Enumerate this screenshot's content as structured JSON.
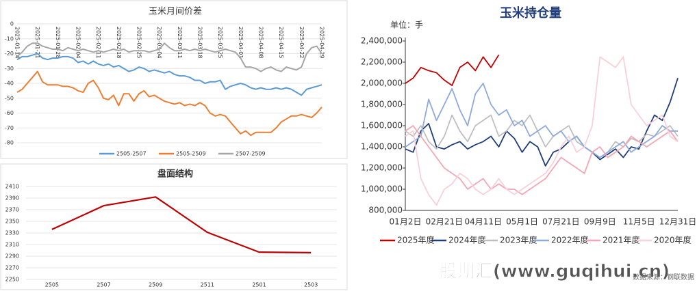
{
  "chart_data": [
    {
      "type": "line",
      "title": "玉米月间价差",
      "categories": [
        "2025-01-14",
        null,
        null,
        null,
        "2025-01-21",
        null,
        null,
        null,
        "2025-01-28",
        null,
        null,
        null,
        "2025-02-04",
        null,
        null,
        null,
        "2025-02-11",
        null,
        null,
        null,
        "2025-02-18",
        null,
        null,
        null,
        "2025-02-25",
        null,
        null,
        null,
        "2025-03-04",
        null,
        null,
        null,
        "2025-03-11",
        null,
        null,
        null,
        "2025-03-18",
        null,
        null,
        null,
        "2025-03-25",
        null,
        null,
        null,
        "2025-04-01",
        null,
        null,
        null,
        "2025-04-08",
        null,
        null,
        null,
        "2025-04-15",
        null,
        null,
        null,
        "2025-04-22",
        null,
        null,
        null,
        "2025-04-29"
      ],
      "series": [
        {
          "name": "2505-2507",
          "color": "#5b9bd5",
          "values": [
            -24,
            -22,
            -22,
            -21,
            -20,
            -23,
            -24,
            -23,
            -23,
            -22,
            -22,
            -23,
            -26,
            -25,
            -27,
            -25,
            -27,
            -28,
            -27,
            -29,
            -28,
            -30,
            -32,
            -31,
            -29,
            -30,
            -32,
            -31,
            -32,
            -33,
            -32,
            -34,
            -35,
            -35,
            -36,
            -38,
            -38,
            -40,
            -39,
            -39,
            -38,
            -44,
            -42,
            -41,
            -40,
            -41,
            -43,
            -44,
            -43,
            -44,
            -44,
            -43,
            -44,
            -43,
            -44,
            -46,
            -48,
            -44,
            -43,
            -42,
            -41
          ]
        },
        {
          "name": "2505-2509",
          "color": "#ed7d31",
          "values": [
            -46,
            -44,
            -40,
            -36,
            -32,
            -39,
            -41,
            -41,
            -41,
            -42,
            -42,
            -43,
            -45,
            -46,
            -40,
            -38,
            -43,
            -50,
            -51,
            -48,
            -55,
            -47,
            -47,
            -52,
            -47,
            -45,
            -49,
            -48,
            -50,
            -52,
            -53,
            -54,
            -53,
            -55,
            -54,
            -55,
            -53,
            -55,
            -60,
            -62,
            -61,
            -62,
            -66,
            -70,
            -74,
            -72,
            -75,
            -73,
            -73,
            -73,
            -73,
            -70,
            -66,
            -64,
            -62,
            -62,
            -61,
            -62,
            -63,
            -60,
            -56
          ]
        },
        {
          "name": "2507-2509",
          "color": "#a5a5a5",
          "values": [
            -22,
            -19,
            -15,
            -13,
            -13,
            -15,
            -16,
            -17,
            -17,
            -18,
            -16,
            -17,
            -18,
            -17,
            -18,
            -19,
            -18,
            -19,
            -18,
            -17,
            -18,
            -17,
            -19,
            -18,
            -18,
            -18,
            -19,
            -18,
            -17,
            -13,
            -16,
            -18,
            -18,
            -17,
            -18,
            -17,
            -18,
            -17,
            -18,
            -19,
            -18,
            -17,
            -18,
            -19,
            -23,
            -29,
            -29,
            -30,
            -32,
            -30,
            -29,
            -31,
            -32,
            -29,
            -30,
            -31,
            -29,
            -20,
            -16,
            -15,
            -20
          ]
        }
      ],
      "ylim": [
        -80,
        0
      ],
      "yticks": [
        -80,
        -70,
        -60,
        -50,
        -40,
        -30,
        -20,
        -10,
        0
      ],
      "grid": true,
      "legend": "bottom"
    },
    {
      "type": "line",
      "title": "盘面结构",
      "categories": [
        "2505",
        "2507",
        "2509",
        "2511",
        "2501",
        "2503"
      ],
      "series": [
        {
          "name": null,
          "color": "#c00000",
          "values": [
            2336,
            2377,
            2392,
            2331,
            2297,
            2296
          ]
        }
      ],
      "ylim": [
        2250,
        2410
      ],
      "yticks": [
        2250,
        2270,
        2290,
        2310,
        2330,
        2350,
        2370,
        2390,
        2410
      ],
      "grid": true
    },
    {
      "type": "line",
      "title": "玉米持仓量",
      "unit_label": "单位：手",
      "source": "数据来源：钢联数据",
      "watermark": "股期汇(www.guqihui.cn)",
      "categories": [
        "01月2日",
        null,
        null,
        null,
        null,
        "02月21日",
        null,
        null,
        null,
        null,
        "04月11日",
        null,
        null,
        null,
        null,
        "05月1日",
        null,
        null,
        null,
        null,
        "07月21日",
        null,
        null,
        null,
        null,
        "09月9日",
        null,
        null,
        null,
        null,
        "11月5日",
        null,
        null,
        null,
        null,
        "12月31日"
      ],
      "series": [
        {
          "name": "2025年度",
          "color": "#c00000",
          "values": [
            2000000,
            2050000,
            2150000,
            2120000,
            2100000,
            2030000,
            1980000,
            2150000,
            2200000,
            2120000,
            2250000,
            2150000,
            2270000,
            null,
            null,
            null,
            null,
            null,
            null,
            null,
            null,
            null,
            null,
            null,
            null,
            null,
            null,
            null,
            null,
            null,
            null,
            null,
            null,
            null,
            null,
            null
          ]
        },
        {
          "name": "2024年度",
          "color": "#1f3d7a",
          "values": [
            1380000,
            1350000,
            1550000,
            1620000,
            1400000,
            1380000,
            1420000,
            1450000,
            1380000,
            1420000,
            1450000,
            1500000,
            1400000,
            1550000,
            1480000,
            1350000,
            1450000,
            1400000,
            1220000,
            1350000,
            1380000,
            1450000,
            1500000,
            1400000,
            1350000,
            1280000,
            1330000,
            1380000,
            1300000,
            1400000,
            1380000,
            1550000,
            1700000,
            1650000,
            1820000,
            2050000
          ]
        },
        {
          "name": "2023年度",
          "color": "#bfbfbf",
          "values": [
            1550000,
            1500000,
            1600000,
            1450000,
            1380000,
            1500000,
            1700000,
            1550000,
            1450000,
            1600000,
            1650000,
            1700000,
            1500000,
            1550000,
            1650000,
            1600000,
            1700000,
            1550000,
            1400000,
            1500000,
            1550000,
            1600000,
            1450000,
            1400000,
            1350000,
            1300000,
            1350000,
            1450000,
            1400000,
            1480000,
            1450000,
            1520000,
            1500000,
            1550000,
            1600000,
            1500000
          ]
        },
        {
          "name": "2022年度",
          "color": "#8ea9db",
          "values": [
            1400000,
            1450000,
            1500000,
            1850000,
            1650000,
            1800000,
            1950000,
            1750000,
            1600000,
            1900000,
            2000000,
            1800000,
            1700000,
            1750000,
            1600000,
            1650000,
            1500000,
            1550000,
            1600000,
            1500000,
            1550000,
            1450000,
            1500000,
            1400000,
            1350000,
            1300000,
            1350000,
            1400000,
            1450000,
            1350000,
            1400000,
            1450000,
            1500000,
            1600000,
            1550000,
            1550000
          ]
        },
        {
          "name": "2021年度",
          "color": "#f4a6b4",
          "values": [
            1550000,
            1600000,
            1500000,
            1400000,
            1300000,
            1200000,
            1150000,
            1100000,
            1000000,
            1050000,
            1100000,
            1000000,
            1050000,
            1000000,
            1000000,
            950000,
            1000000,
            1050000,
            1100000,
            1200000,
            1300000,
            1250000,
            1200000,
            1150000,
            1350000,
            1400000,
            1300000,
            1350000,
            1400000,
            1500000,
            1450000,
            1400000,
            1450000,
            1500000,
            1550000,
            1450000
          ]
        },
        {
          "name": "2020年度",
          "color": "#f8d0da",
          "values": [
            1500000,
            1550000,
            1100000,
            950000,
            850000,
            1000000,
            1050000,
            1150000,
            1100000,
            1000000,
            950000,
            1000000,
            1100000,
            1000000,
            950000,
            1000000,
            1050000,
            1100000,
            1150000,
            1250000,
            1400000,
            1500000,
            1350000,
            1400000,
            1600000,
            2250000,
            2200000,
            2150000,
            2250000,
            1800000,
            1700000,
            1600000,
            1650000,
            1700000,
            1500000,
            1450000
          ]
        }
      ],
      "ylim": [
        800000,
        2400000
      ],
      "yticks": [
        {
          "value": 800000,
          "label": "800,000"
        },
        {
          "value": 1000000,
          "label": "1,000,000"
        },
        {
          "value": 1200000,
          "label": "1,200,000"
        },
        {
          "value": 1400000,
          "label": "1,400,000"
        },
        {
          "value": 1600000,
          "label": "1,600,000"
        },
        {
          "value": 1800000,
          "label": "1,800,000"
        },
        {
          "value": 2000000,
          "label": "2,000,000"
        },
        {
          "value": 2200000,
          "label": "2,200,000"
        },
        {
          "value": 2400000,
          "label": "2,400,000"
        }
      ],
      "grid": false,
      "legend": "bottom"
    }
  ]
}
